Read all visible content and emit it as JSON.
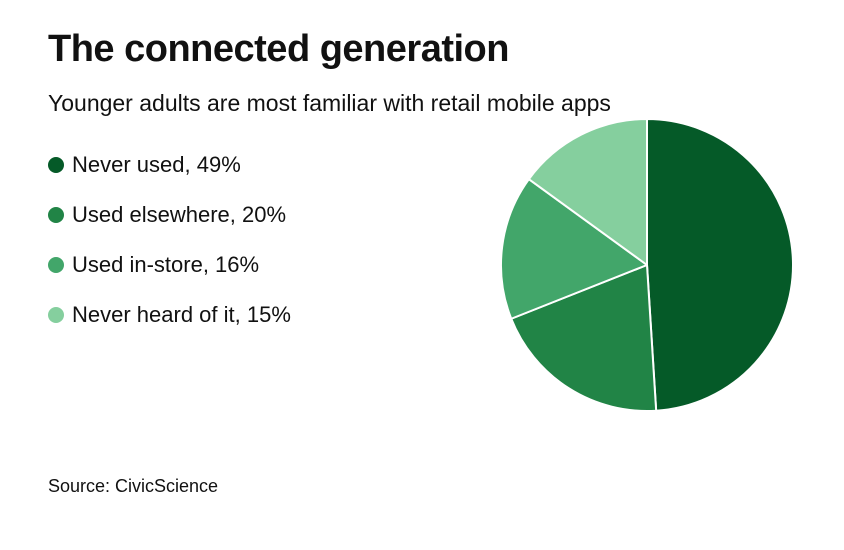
{
  "chart_data": {
    "type": "pie",
    "title": "The connected generation",
    "subtitle": "Younger adults are most familiar with retail mobile apps",
    "categories": [
      "Never used",
      "Used elsewhere",
      "Used in-store",
      "Never heard of it"
    ],
    "values": [
      49,
      20,
      16,
      15
    ],
    "labels": [
      "Never used, 49%",
      "Used elsewhere, 20%",
      "Used in-store, 16%",
      "Never heard of it, 15%"
    ],
    "colors": [
      "#055a28",
      "#218446",
      "#42a66a",
      "#85cf9e"
    ],
    "legend_position": "left",
    "source": "Source: CivicScience"
  }
}
